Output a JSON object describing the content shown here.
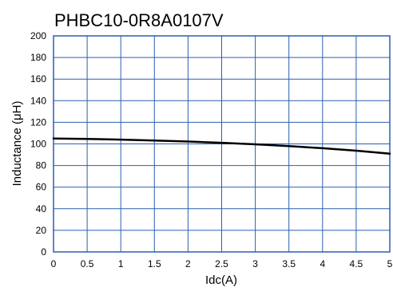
{
  "chart_data": {
    "type": "line",
    "title": "PHBC10-0R8A0107V",
    "xlabel": "Idc(A)",
    "ylabel": "Inductance (μH)",
    "xlim": [
      0,
      5
    ],
    "ylim": [
      0,
      200
    ],
    "x_ticks": [
      0,
      0.5,
      1,
      1.5,
      2,
      2.5,
      3,
      3.5,
      4,
      4.5,
      5
    ],
    "x_tick_labels": [
      "0",
      "0.5",
      "1",
      "1.5",
      "2",
      "2.5",
      "3",
      "3.5",
      "4",
      "4.5",
      "5"
    ],
    "y_ticks": [
      0,
      20,
      40,
      60,
      80,
      100,
      120,
      140,
      160,
      180,
      200
    ],
    "y_tick_labels": [
      "0",
      "20",
      "40",
      "60",
      "80",
      "100",
      "120",
      "140",
      "160",
      "180",
      "200"
    ],
    "grid": true,
    "colors": {
      "grid": "#2a5fb0",
      "frame": "#2a5fb0",
      "line": "#000000"
    },
    "series": [
      {
        "x": [
          0,
          0.5,
          1,
          1.5,
          2,
          2.5,
          3,
          3.5,
          4,
          4.5,
          5
        ],
        "y": [
          105,
          104.6,
          104,
          103.2,
          102.2,
          101,
          99.6,
          97.9,
          96,
          93.7,
          91
        ]
      }
    ]
  }
}
